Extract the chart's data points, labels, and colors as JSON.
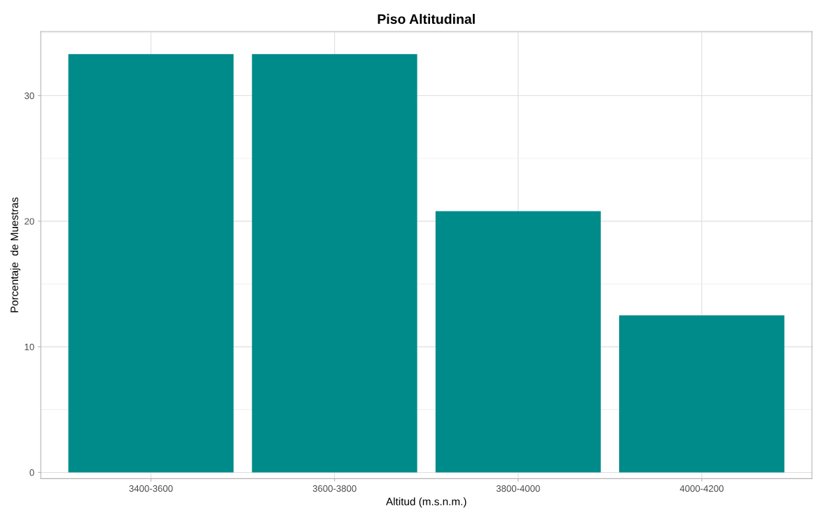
{
  "chart_data": {
    "type": "bar",
    "title": "Piso Altitudinal",
    "xlabel": "Altitud (m.s.n.m.)",
    "ylabel": "Porcentaje  de Muestras",
    "categories": [
      "3400-3600",
      "3600-3800",
      "3800-4000",
      "4000-4200"
    ],
    "values": [
      33.3,
      33.3,
      20.8,
      12.5
    ],
    "color": "#008b8b",
    "ylim": [
      -0.5,
      35.1
    ],
    "yticks": [
      0,
      10,
      20,
      30
    ],
    "grid": true
  }
}
